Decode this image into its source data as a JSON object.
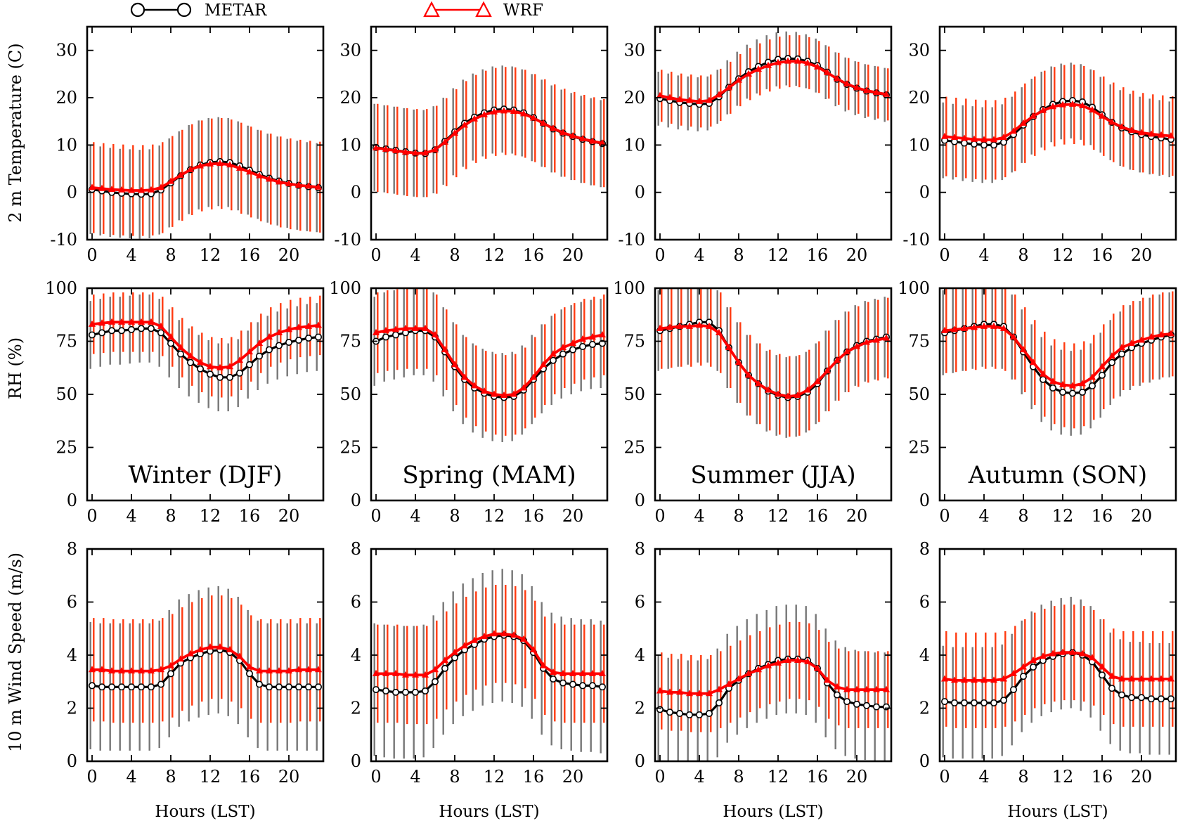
{
  "legend": {
    "metar_label": "METAR",
    "wrf_label": "WRF",
    "metar_color": "#000000",
    "wrf_color": "#ff0000",
    "metar_bar_color": "#777777",
    "wrf_bar_color": "#ff3a10"
  },
  "row_labels": [
    "2 m Temperature (C)",
    "RH (%)",
    "10 m Wind Speed (m/s)"
  ],
  "seasons": [
    "Winter (DJF)",
    "Spring (MAM)",
    "Summer (JJA)",
    "Autumn (SON)"
  ],
  "xlabel": "Hours (LST)",
  "chart_data": {
    "type": "line",
    "x": [
      0,
      1,
      2,
      3,
      4,
      5,
      6,
      7,
      8,
      9,
      10,
      11,
      12,
      13,
      14,
      15,
      16,
      17,
      18,
      19,
      20,
      21,
      22,
      23
    ],
    "xticks": [
      0,
      4,
      8,
      12,
      16,
      20
    ],
    "xlim": [
      -0.5,
      23.5
    ],
    "variables": [
      {
        "name": "temperature",
        "ylabel": "2 m Temperature (C)",
        "ylim": [
          -10,
          35
        ],
        "yticks": [
          -10,
          0,
          10,
          20,
          30
        ],
        "panels": [
          {
            "season": "Winter (DJF)",
            "metar": {
              "mean": [
                0.6,
                0.3,
                0.0,
                -0.2,
                -0.3,
                -0.4,
                -0.3,
                0.5,
                2.0,
                3.5,
                4.8,
                5.8,
                6.3,
                6.5,
                6.3,
                5.6,
                4.7,
                3.8,
                3.0,
                2.4,
                1.9,
                1.5,
                1.2,
                1.0
              ],
              "sd": 9.4
            },
            "wrf": {
              "mean": [
                1.0,
                0.8,
                0.6,
                0.5,
                0.4,
                0.4,
                0.5,
                1.0,
                2.3,
                3.6,
                4.8,
                5.6,
                6.0,
                6.1,
                5.8,
                5.1,
                4.3,
                3.5,
                2.8,
                2.2,
                1.8,
                1.5,
                1.3,
                1.1
              ],
              "sd": 9.6
            }
          },
          {
            "season": "Spring (MAM)",
            "metar": {
              "mean": [
                9.5,
                9.2,
                8.9,
                8.6,
                8.3,
                8.2,
                9.0,
                10.8,
                12.8,
                14.6,
                15.9,
                16.8,
                17.4,
                17.6,
                17.4,
                16.8,
                15.8,
                14.6,
                13.4,
                12.5,
                11.8,
                11.2,
                10.7,
                10.3
              ],
              "sd": 9.2
            },
            "wrf": {
              "mean": [
                9.4,
                9.1,
                8.8,
                8.5,
                8.3,
                8.3,
                9.0,
                10.6,
                12.5,
                14.2,
                15.5,
                16.4,
                17.0,
                17.2,
                17.1,
                16.6,
                15.7,
                14.6,
                13.5,
                12.6,
                11.9,
                11.3,
                10.8,
                10.4
              ],
              "sd": 9.3
            }
          },
          {
            "season": "Summer (JJA)",
            "metar": {
              "mean": [
                19.8,
                19.4,
                19.0,
                18.8,
                18.6,
                18.8,
                20.2,
                22.2,
                24.0,
                25.5,
                26.6,
                27.5,
                28.1,
                28.3,
                28.2,
                27.7,
                26.8,
                25.4,
                23.9,
                22.8,
                22.0,
                21.4,
                21.0,
                20.6
              ],
              "sd": 5.7
            },
            "wrf": {
              "mean": [
                20.4,
                20.0,
                19.6,
                19.4,
                19.2,
                19.4,
                20.6,
                22.1,
                23.7,
                25.0,
                26.0,
                26.8,
                27.4,
                27.7,
                27.7,
                27.3,
                26.5,
                25.3,
                24.0,
                22.9,
                22.1,
                21.5,
                21.1,
                20.7
              ],
              "sd": 5.5
            }
          },
          {
            "season": "Autumn (SON)",
            "metar": {
              "mean": [
                11.0,
                10.7,
                10.4,
                10.2,
                10.0,
                10.0,
                10.6,
                12.2,
                14.2,
                16.0,
                17.5,
                18.6,
                19.2,
                19.4,
                19.1,
                18.0,
                16.4,
                14.8,
                13.6,
                12.8,
                12.2,
                11.8,
                11.5,
                11.2
              ],
              "sd": 8.0
            },
            "wrf": {
              "mean": [
                11.8,
                11.6,
                11.4,
                11.2,
                11.1,
                11.1,
                11.6,
                12.9,
                14.6,
                16.1,
                17.3,
                18.1,
                18.5,
                18.6,
                18.3,
                17.4,
                16.1,
                14.8,
                13.8,
                13.1,
                12.6,
                12.3,
                12.1,
                11.9
              ],
              "sd": 8.4
            }
          }
        ]
      },
      {
        "name": "rh",
        "ylabel": "RH (%)",
        "ylim": [
          0,
          100
        ],
        "yticks": [
          0,
          25,
          50,
          75,
          100
        ],
        "panels": [
          {
            "season": "Winter (DJF)",
            "metar": {
              "mean": [
                78,
                79,
                80,
                80,
                80.5,
                81,
                81,
                79,
                74,
                69,
                65,
                62,
                59.5,
                58,
                58,
                60,
                64,
                68,
                71,
                73,
                74.5,
                75.5,
                76.5,
                77
              ],
              "sd": 16
            },
            "wrf": {
              "mean": [
                83,
                83.5,
                84,
                84,
                84,
                84,
                84,
                82,
                77,
                72,
                68,
                65,
                63,
                62.5,
                63,
                66,
                70,
                74,
                77,
                79,
                80.5,
                81.5,
                82,
                82.5
              ],
              "sd": 14
            }
          },
          {
            "season": "Spring (MAM)",
            "metar": {
              "mean": [
                75,
                77,
                78,
                79,
                80,
                80,
                77,
                70,
                63,
                57,
                53,
                50.5,
                49,
                48.5,
                49,
                52,
                57,
                62,
                66,
                69,
                71,
                72.5,
                73.5,
                74
              ],
              "sd": 21
            },
            "wrf": {
              "mean": [
                79,
                80,
                80.5,
                81,
                81,
                81,
                78,
                71,
                64,
                58,
                54,
                51.5,
                50,
                49.5,
                50,
                53,
                58,
                64,
                69,
                72,
                74,
                76,
                77,
                78
              ],
              "sd": 19
            }
          },
          {
            "season": "Summer (JJA)",
            "metar": {
              "mean": [
                80,
                81,
                82,
                83,
                84,
                84,
                80,
                72,
                65,
                59,
                55,
                51.5,
                49.5,
                48.5,
                49,
                51,
                55,
                61,
                66,
                70,
                73,
                75,
                76,
                77
              ],
              "sd": 19
            },
            "wrf": {
              "mean": [
                81,
                81.5,
                82,
                82,
                82.5,
                82,
                79,
                72,
                65,
                59,
                55,
                52,
                50,
                49,
                49.5,
                52,
                56,
                61,
                66,
                70,
                72.5,
                74.5,
                75.5,
                76.5
              ],
              "sd": 19
            }
          },
          {
            "season": "Autumn (SON)",
            "metar": {
              "mean": [
                79,
                80,
                81,
                82,
                83,
                83,
                82,
                77,
                70,
                63,
                57,
                53,
                51,
                50.5,
                51,
                54,
                59,
                65,
                69,
                72,
                74,
                75.5,
                77,
                78
              ],
              "sd": 20
            },
            "wrf": {
              "mean": [
                80,
                80.5,
                81,
                81.5,
                82,
                82,
                81,
                77,
                71,
                65,
                59.5,
                56,
                54.5,
                54,
                55,
                58,
                63,
                68,
                72,
                74,
                75.5,
                77,
                78,
                78.5
              ],
              "sd": 20
            }
          }
        ]
      },
      {
        "name": "wind",
        "ylabel": "10 m Wind Speed (m/s)",
        "ylim": [
          0,
          8
        ],
        "yticks": [
          0,
          2,
          4,
          6,
          8
        ],
        "panels": [
          {
            "season": "Winter (DJF)",
            "metar": {
              "mean": [
                2.85,
                2.8,
                2.8,
                2.8,
                2.8,
                2.8,
                2.8,
                2.9,
                3.3,
                3.7,
                3.9,
                4.05,
                4.15,
                4.2,
                4.1,
                3.8,
                3.3,
                2.9,
                2.8,
                2.8,
                2.8,
                2.8,
                2.8,
                2.8
              ],
              "sd": 2.4
            },
            "wrf": {
              "mean": [
                3.45,
                3.45,
                3.4,
                3.4,
                3.4,
                3.4,
                3.4,
                3.45,
                3.6,
                3.85,
                4.05,
                4.2,
                4.3,
                4.3,
                4.2,
                3.95,
                3.55,
                3.4,
                3.4,
                3.4,
                3.4,
                3.45,
                3.45,
                3.45
              ],
              "sd": 1.95
            }
          },
          {
            "season": "Spring (MAM)",
            "metar": {
              "mean": [
                2.7,
                2.65,
                2.6,
                2.6,
                2.6,
                2.65,
                3.0,
                3.5,
                3.9,
                4.2,
                4.4,
                4.6,
                4.7,
                4.75,
                4.7,
                4.55,
                4.1,
                3.5,
                3.1,
                2.95,
                2.9,
                2.85,
                2.85,
                2.8
              ],
              "sd": 2.5
            },
            "wrf": {
              "mean": [
                3.3,
                3.3,
                3.3,
                3.25,
                3.25,
                3.25,
                3.45,
                3.8,
                4.1,
                4.35,
                4.55,
                4.7,
                4.8,
                4.8,
                4.75,
                4.6,
                4.2,
                3.6,
                3.35,
                3.3,
                3.3,
                3.3,
                3.3,
                3.3
              ],
              "sd": 1.85
            }
          },
          {
            "season": "Summer (JJA)",
            "metar": {
              "mean": [
                1.95,
                1.85,
                1.8,
                1.75,
                1.75,
                1.8,
                2.2,
                2.75,
                3.05,
                3.3,
                3.5,
                3.65,
                3.8,
                3.85,
                3.85,
                3.8,
                3.5,
                2.95,
                2.5,
                2.25,
                2.15,
                2.1,
                2.05,
                2.05
              ],
              "sd": 2.05
            },
            "wrf": {
              "mean": [
                2.65,
                2.6,
                2.6,
                2.55,
                2.55,
                2.55,
                2.7,
                2.9,
                3.1,
                3.3,
                3.45,
                3.6,
                3.7,
                3.8,
                3.8,
                3.75,
                3.5,
                3.05,
                2.8,
                2.7,
                2.7,
                2.7,
                2.7,
                2.7
              ],
              "sd": 1.45
            }
          },
          {
            "season": "Autumn (SON)",
            "metar": {
              "mean": [
                2.25,
                2.2,
                2.2,
                2.2,
                2.2,
                2.2,
                2.3,
                2.7,
                3.2,
                3.55,
                3.8,
                3.95,
                4.05,
                4.1,
                4.0,
                3.75,
                3.25,
                2.75,
                2.5,
                2.4,
                2.4,
                2.35,
                2.35,
                2.35
              ],
              "sd": 2.1
            },
            "wrf": {
              "mean": [
                3.1,
                3.05,
                3.05,
                3.05,
                3.05,
                3.05,
                3.1,
                3.3,
                3.55,
                3.8,
                3.95,
                4.05,
                4.1,
                4.1,
                4.05,
                3.9,
                3.55,
                3.2,
                3.1,
                3.1,
                3.1,
                3.1,
                3.1,
                3.1
              ],
              "sd": 1.8
            }
          }
        ]
      }
    ]
  }
}
